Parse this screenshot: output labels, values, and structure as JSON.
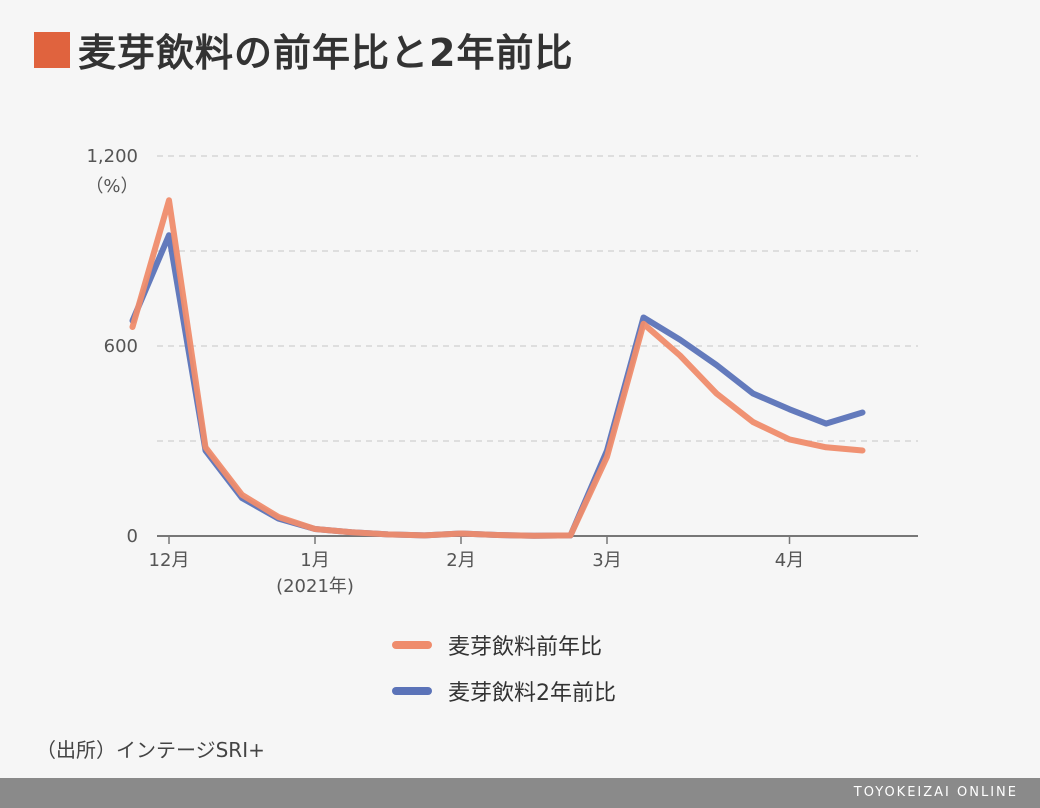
{
  "header": {
    "title": "麦芽飲料の前年比と2年前比",
    "accent_color": "#e0633e"
  },
  "chart_data": {
    "type": "line",
    "title": "麦芽飲料の前年比と2年前比",
    "y_unit": "（%）",
    "ylim": [
      0,
      1200
    ],
    "y_ticks": [
      {
        "value": 0,
        "label": "0"
      },
      {
        "value": 600,
        "label": "600"
      },
      {
        "value": 1200,
        "label": "1,200"
      }
    ],
    "y_gridlines": [
      300,
      600,
      900,
      1200
    ],
    "x_ticks": [
      {
        "x": 2,
        "label": "12月",
        "sublabel": ""
      },
      {
        "x": 6,
        "label": "1月",
        "sublabel": "(2021年)"
      },
      {
        "x": 10,
        "label": "2月",
        "sublabel": ""
      },
      {
        "x": 14,
        "label": "3月",
        "sublabel": ""
      },
      {
        "x": 19,
        "label": "4月",
        "sublabel": ""
      }
    ],
    "x": [
      1,
      2,
      3,
      4,
      5,
      6,
      7,
      8,
      9,
      10,
      11,
      12,
      13,
      14,
      15,
      16,
      17,
      18,
      19,
      20,
      21
    ],
    "series": [
      {
        "name": "麦芽飲料2年前比",
        "color": "#5b73b8",
        "values": [
          680,
          950,
          270,
          120,
          55,
          22,
          12,
          5,
          2,
          8,
          3,
          1,
          2,
          270,
          690,
          620,
          540,
          450,
          400,
          355,
          390
        ]
      },
      {
        "name": "麦芽飲料前年比",
        "color": "#ef8c6c",
        "values": [
          660,
          1060,
          280,
          130,
          60,
          22,
          12,
          5,
          2,
          8,
          3,
          1,
          2,
          250,
          670,
          570,
          450,
          360,
          305,
          280,
          270
        ]
      }
    ]
  },
  "legend": {
    "items": [
      {
        "label": "麦芽飲料前年比",
        "color": "#ef8c6c"
      },
      {
        "label": "麦芽飲料2年前比",
        "color": "#5b73b8"
      }
    ]
  },
  "source": "（出所）インテージSRI+",
  "footer": "TOYOKEIZAI ONLINE"
}
